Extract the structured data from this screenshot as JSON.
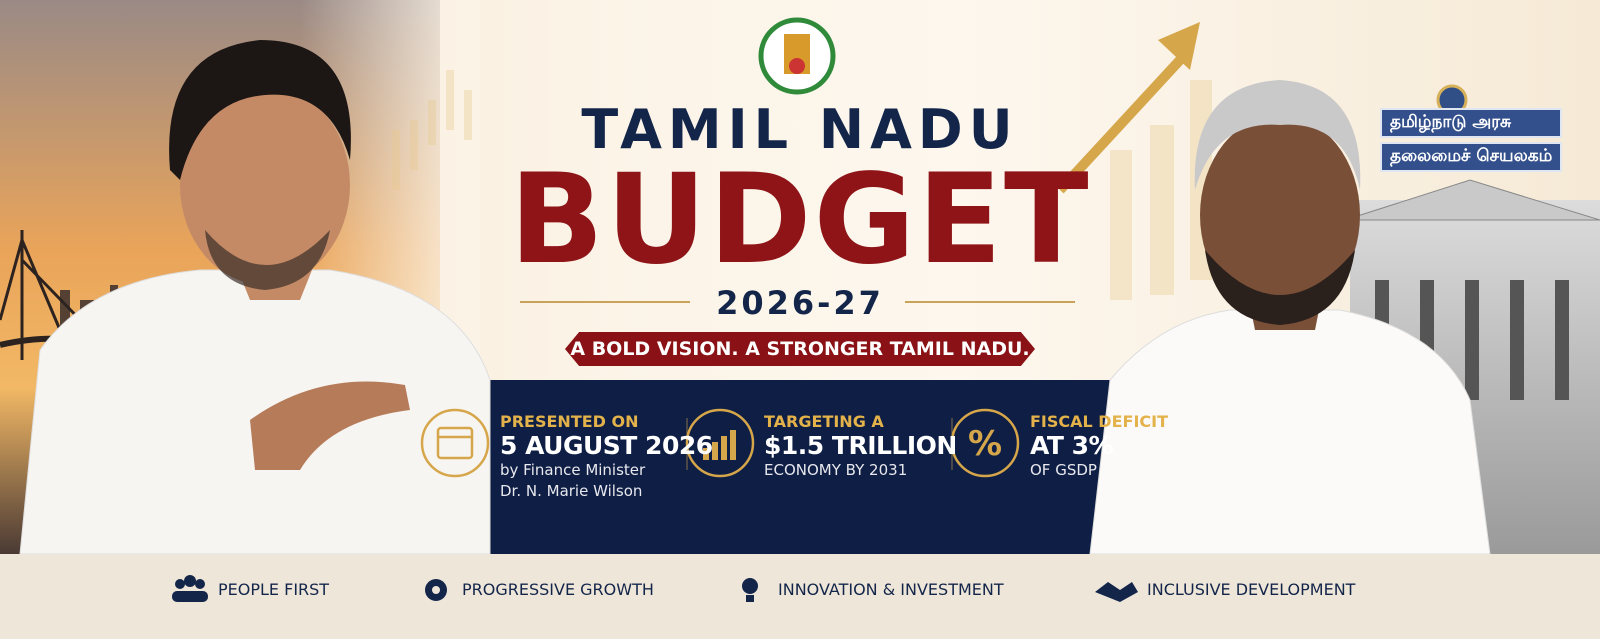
{
  "header": {
    "title_top": "TAMIL NADU",
    "title_main": "BUDGET",
    "year": "2026-27",
    "tagline": "A BOLD VISION. A STRONGER TAMIL NADU."
  },
  "building_sign": [
    "தமிழ்நாடு அரசு",
    "தலைமைச் செயலகம்"
  ],
  "highlights": [
    {
      "label": "PRESENTED ON",
      "value": "5 AUGUST 2026",
      "detail": [
        "by Finance Minister",
        "Dr. N. Marie Wilson"
      ]
    },
    {
      "label": "TARGETING A",
      "value": "$1.5 TRILLION",
      "detail": [
        "ECONOMY BY 2031"
      ]
    },
    {
      "label": "FISCAL DEFICIT",
      "value": "AT 3%",
      "detail": [
        "OF GSDP"
      ]
    }
  ],
  "pillars": [
    "PEOPLE FIRST",
    "PROGRESSIVE GROWTH",
    "INNOVATION & INVESTMENT",
    "INCLUSIVE DEVELOPMENT"
  ]
}
